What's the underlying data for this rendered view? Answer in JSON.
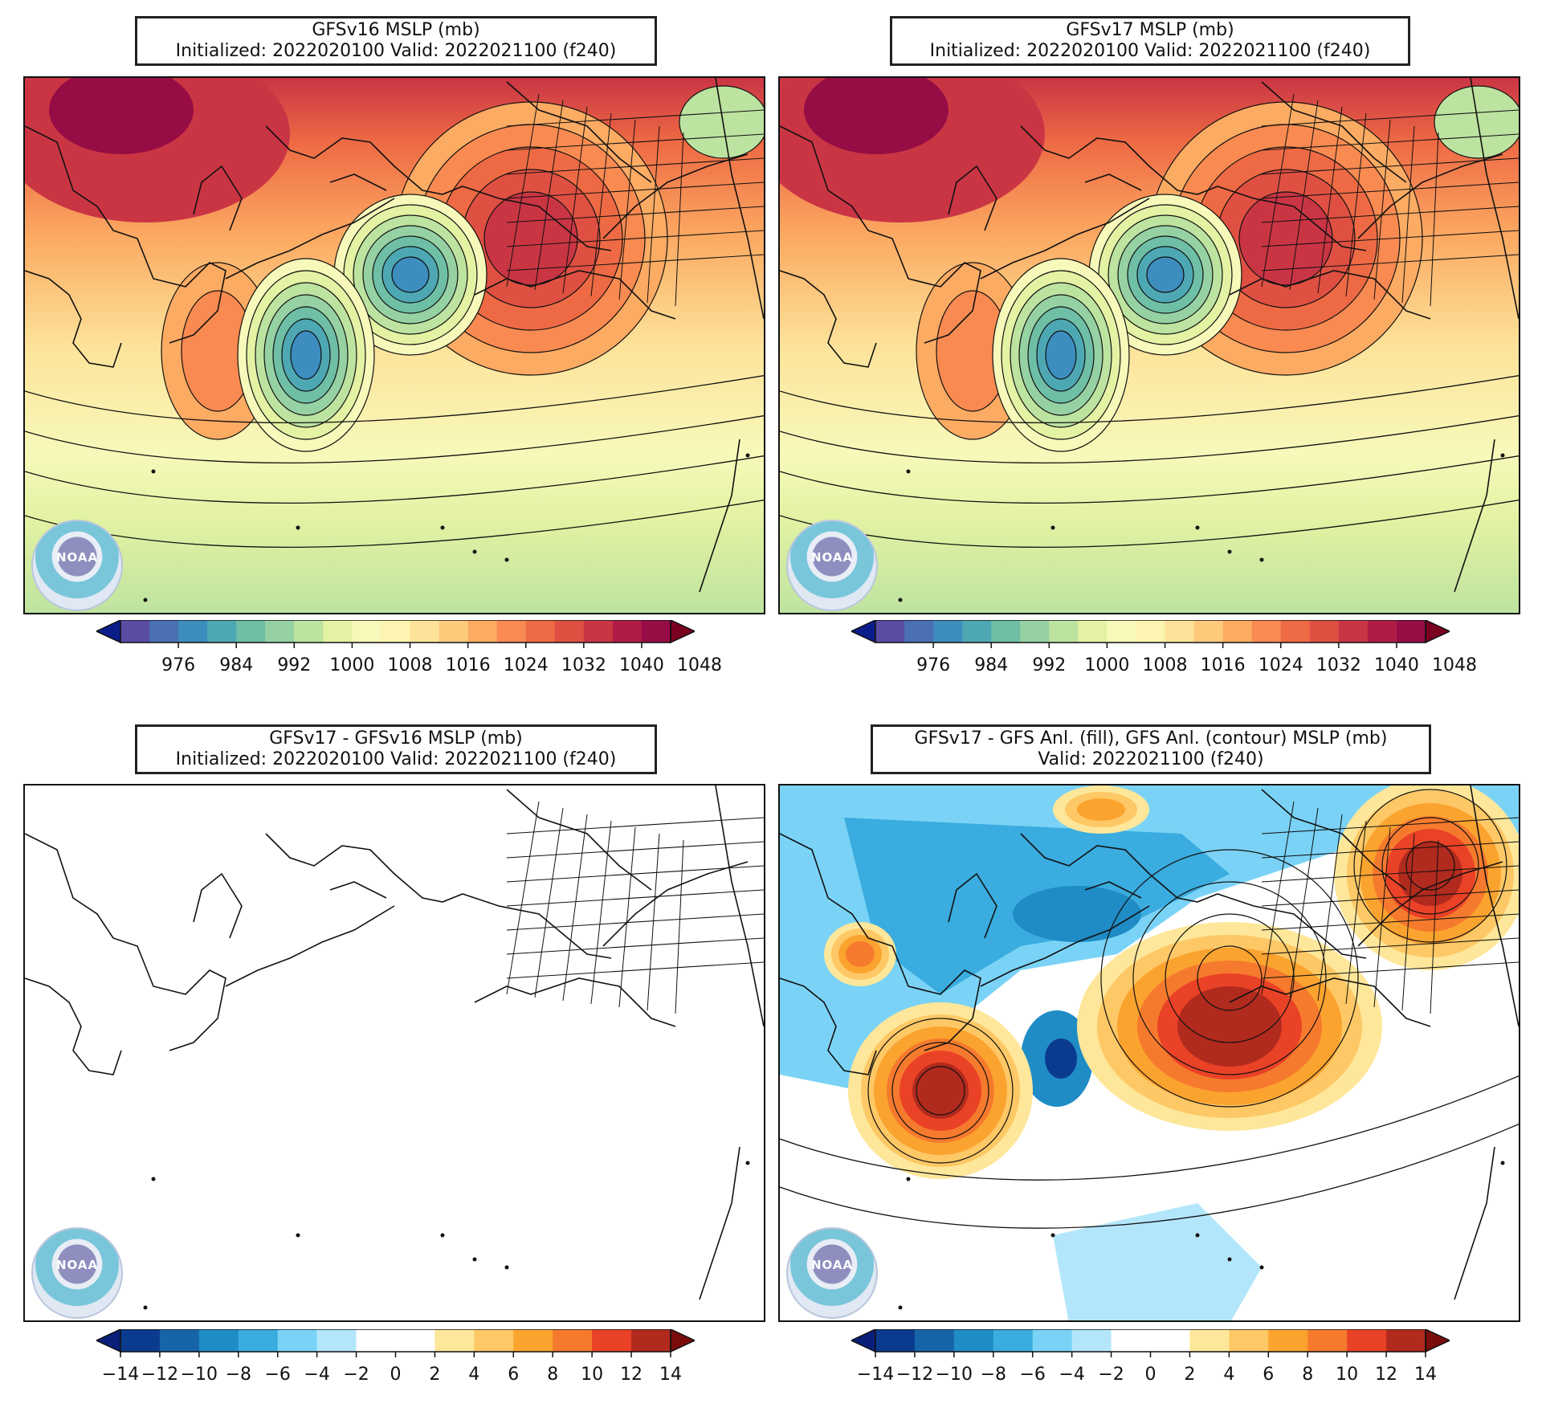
{
  "panels": [
    {
      "title_line1": "GFSv16 MSLP (mb)",
      "title_line2": "Initialized: 2022020100 Valid: 2022021100 (f240)",
      "kind": "mslp"
    },
    {
      "title_line1": "GFSv17 MSLP (mb)",
      "title_line2": "Initialized: 2022020100 Valid: 2022021100 (f240)",
      "kind": "mslp"
    },
    {
      "title_line1": "GFSv17 - GFSv16 MSLP (mb)",
      "title_line2": "Initialized: 2022020100 Valid: 2022021100 (f240)",
      "kind": "blank"
    },
    {
      "title_line1": "GFSv17 - GFS Anl. (fill), GFS Anl. (contour) MSLP (mb)",
      "title_line2": "Valid: 2022021100 (f240)",
      "kind": "diff"
    }
  ],
  "colorbar_mslp": {
    "ticks": [
      "976",
      "984",
      "992",
      "1000",
      "1008",
      "1016",
      "1024",
      "1032",
      "1040",
      "1048"
    ],
    "colors": [
      "#5a4ba3",
      "#4a6fb3",
      "#3d8dbf",
      "#4ea8b4",
      "#6ebfa6",
      "#96d1a4",
      "#bde3a0",
      "#e3f2a3",
      "#f7f9ba",
      "#fcf4b0",
      "#fde39a",
      "#fdca7c",
      "#fcab63",
      "#f98a51",
      "#ee6a44",
      "#df5042",
      "#ca3544",
      "#b01c46",
      "#960c45"
    ],
    "low_color": "#0b1d8a",
    "high_color": "#7a0020"
  },
  "colorbar_diff": {
    "ticks": [
      "−14",
      "−12",
      "−10",
      "−8",
      "−6",
      "−4",
      "−2",
      "0",
      "2",
      "4",
      "6",
      "8",
      "10",
      "12",
      "14"
    ],
    "colors": [
      "#0b3b8f",
      "#1765a8",
      "#1f8cc6",
      "#3aacdf",
      "#7ad3f6",
      "#b3e6fb",
      "#ffffff",
      "#ffffff",
      "#fee79a",
      "#fdc865",
      "#fba32f",
      "#f67a2d",
      "#ea4226",
      "#b12a1e"
    ],
    "low_color": "#0a1f7a",
    "high_color": "#7a0c0c"
  },
  "logo_text": "NOAA"
}
